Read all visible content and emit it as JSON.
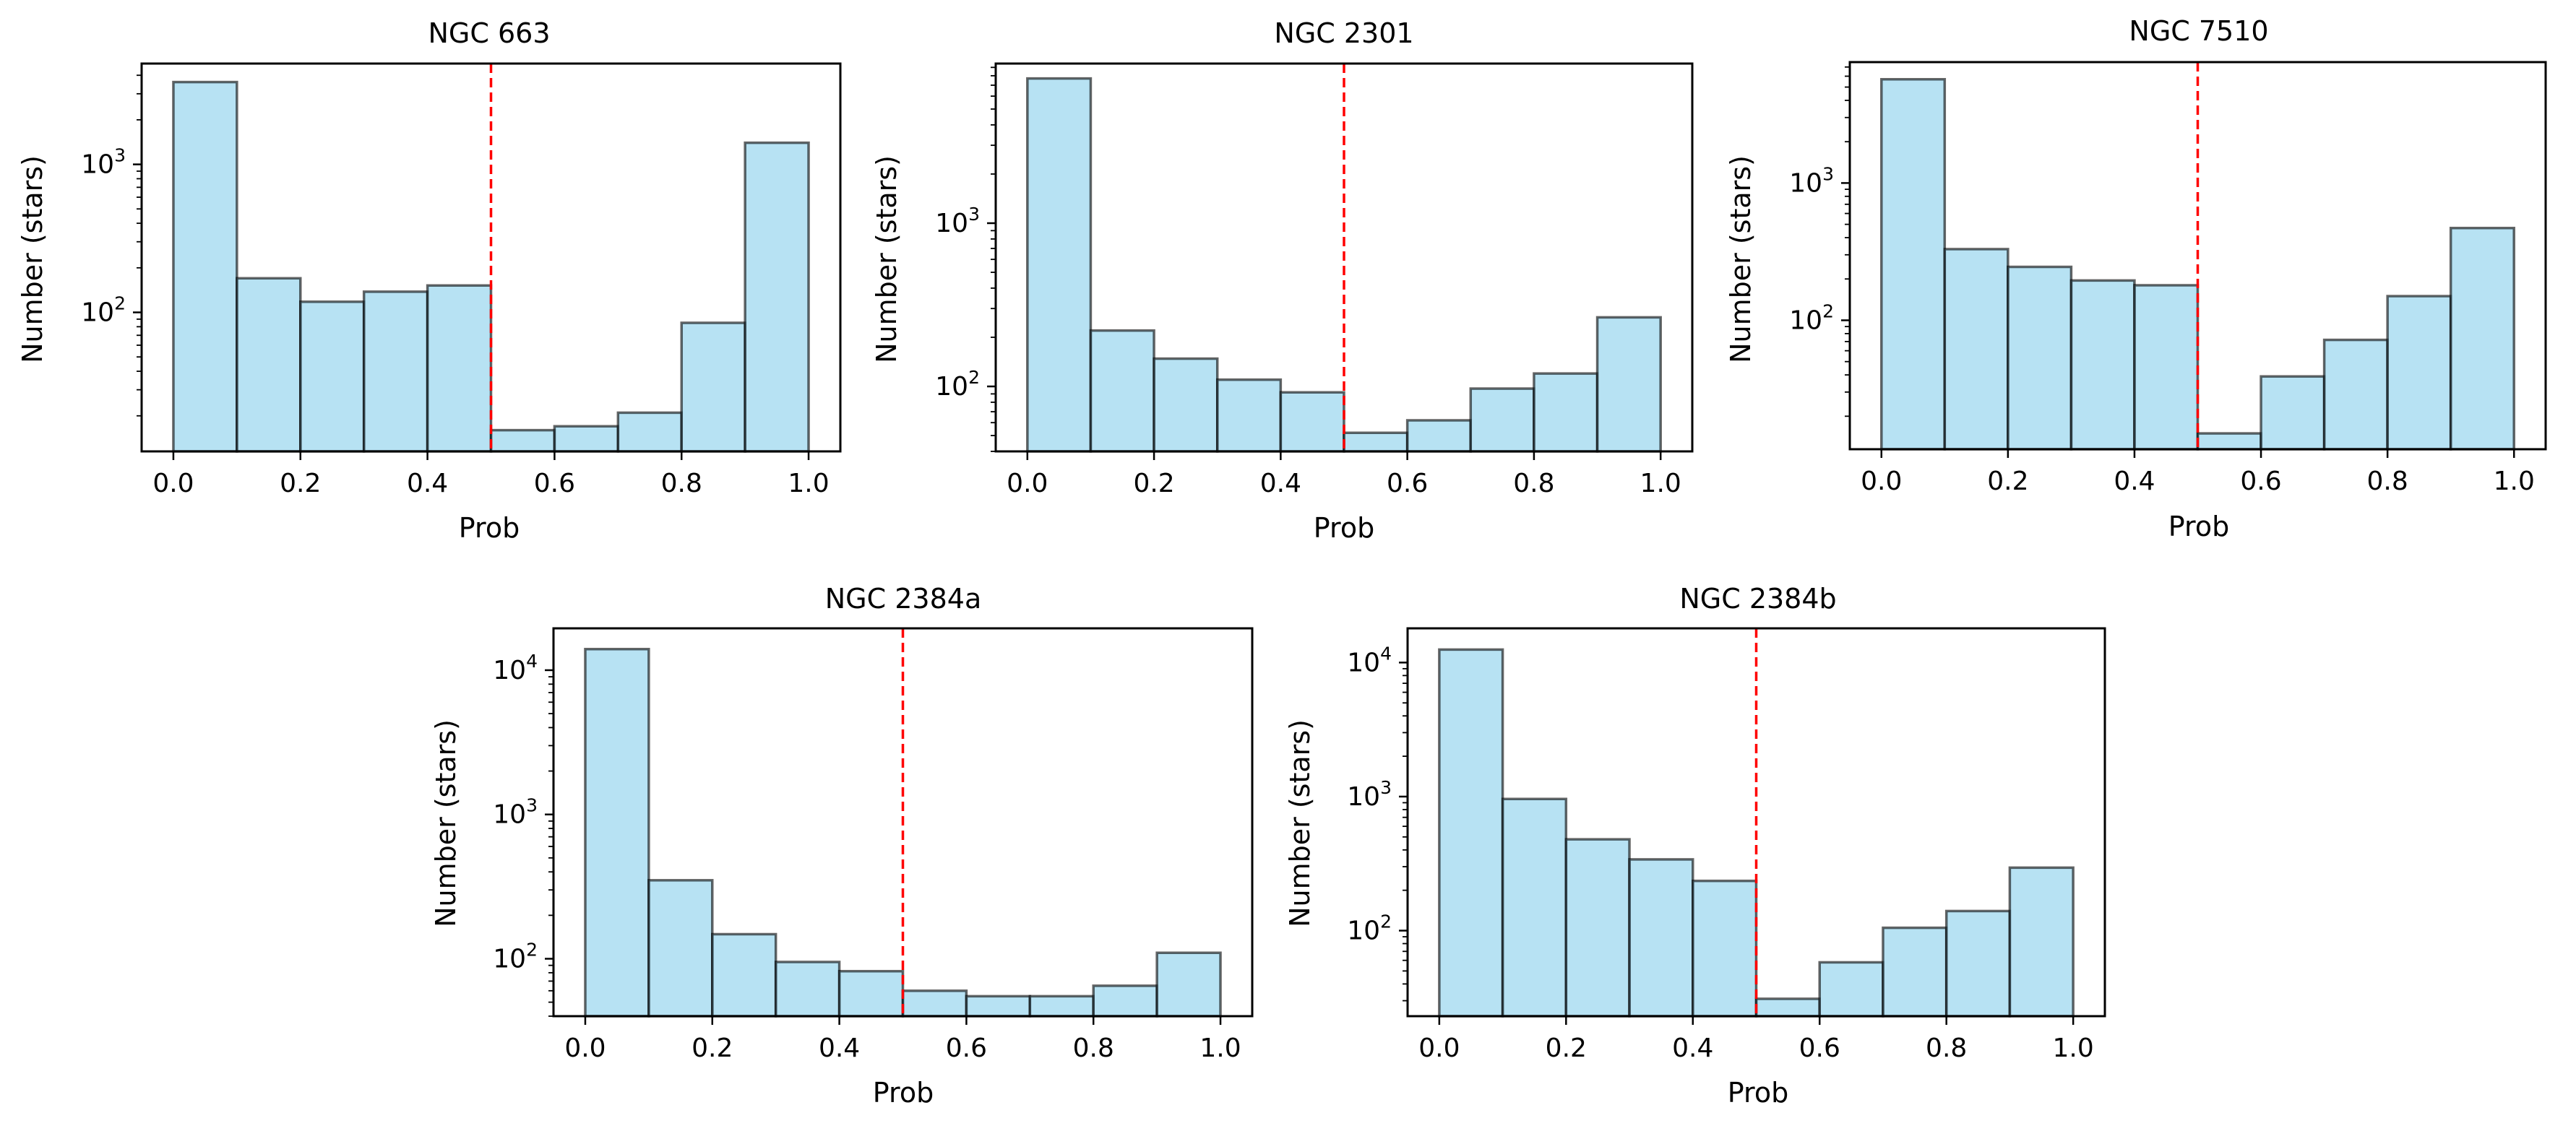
{
  "colors": {
    "bar_fill": "#87ceeb",
    "bar_edge": "#000000",
    "threshold_line": "#ff0000"
  },
  "chart_data": [
    {
      "type": "bar",
      "title": "NGC 663",
      "xlabel": "Prob",
      "ylabel": "Number (stars)",
      "yscale": "log",
      "xlim": [
        -0.05,
        1.05
      ],
      "ylim": [
        11.5,
        4800
      ],
      "xticks": [
        "0.0",
        "0.2",
        "0.4",
        "0.6",
        "0.8",
        "1.0"
      ],
      "yticks": [
        {
          "base": "10",
          "exp": "2",
          "value": 100
        },
        {
          "base": "10",
          "exp": "3",
          "value": 1000
        }
      ],
      "bin_edges": [
        0.0,
        0.1,
        0.2,
        0.3,
        0.4,
        0.5,
        0.6,
        0.7,
        0.8,
        0.9,
        1.0
      ],
      "values": [
        3600,
        170,
        118,
        138,
        152,
        16,
        17,
        21,
        85,
        1400
      ],
      "threshold": 0.5
    },
    {
      "type": "bar",
      "title": "NGC 2301",
      "xlabel": "Prob",
      "ylabel": "Number (stars)",
      "yscale": "log",
      "xlim": [
        -0.05,
        1.05
      ],
      "ylim": [
        40,
        9500
      ],
      "xticks": [
        "0.0",
        "0.2",
        "0.4",
        "0.6",
        "0.8",
        "1.0"
      ],
      "yticks": [
        {
          "base": "10",
          "exp": "2",
          "value": 100
        },
        {
          "base": "10",
          "exp": "3",
          "value": 1000
        }
      ],
      "bin_edges": [
        0.0,
        0.1,
        0.2,
        0.3,
        0.4,
        0.5,
        0.6,
        0.7,
        0.8,
        0.9,
        1.0
      ],
      "values": [
        7700,
        220,
        148,
        110,
        92,
        52,
        62,
        97,
        120,
        265
      ],
      "threshold": 0.5
    },
    {
      "type": "bar",
      "title": "NGC 7510",
      "xlabel": "Prob",
      "ylabel": "Number (stars)",
      "yscale": "log",
      "xlim": [
        -0.05,
        1.05
      ],
      "ylim": [
        11.5,
        7600
      ],
      "xticks": [
        "0.0",
        "0.2",
        "0.4",
        "0.6",
        "0.8",
        "1.0"
      ],
      "yticks": [
        {
          "base": "10",
          "exp": "2",
          "value": 100
        },
        {
          "base": "10",
          "exp": "3",
          "value": 1000
        }
      ],
      "bin_edges": [
        0.0,
        0.1,
        0.2,
        0.3,
        0.4,
        0.5,
        0.6,
        0.7,
        0.8,
        0.9,
        1.0
      ],
      "values": [
        5700,
        330,
        245,
        195,
        180,
        15,
        39,
        72,
        150,
        470
      ],
      "threshold": 0.5
    },
    {
      "type": "bar",
      "title": "NGC 2384a",
      "xlabel": "Prob",
      "ylabel": "Number (stars)",
      "yscale": "log",
      "xlim": [
        -0.05,
        1.05
      ],
      "ylim": [
        40,
        19500
      ],
      "xticks": [
        "0.0",
        "0.2",
        "0.4",
        "0.6",
        "0.8",
        "1.0"
      ],
      "yticks": [
        {
          "base": "10",
          "exp": "2",
          "value": 100
        },
        {
          "base": "10",
          "exp": "3",
          "value": 1000
        },
        {
          "base": "10",
          "exp": "4",
          "value": 10000
        }
      ],
      "bin_edges": [
        0.0,
        0.1,
        0.2,
        0.3,
        0.4,
        0.5,
        0.6,
        0.7,
        0.8,
        0.9,
        1.0
      ],
      "values": [
        14000,
        350,
        148,
        95,
        82,
        60,
        55,
        55,
        65,
        110
      ],
      "threshold": 0.5
    },
    {
      "type": "bar",
      "title": "NGC 2384b",
      "xlabel": "Prob",
      "ylabel": "Number (stars)",
      "yscale": "log",
      "xlim": [
        -0.05,
        1.05
      ],
      "ylim": [
        23,
        18000
      ],
      "xticks": [
        "0.0",
        "0.2",
        "0.4",
        "0.6",
        "0.8",
        "1.0"
      ],
      "yticks": [
        {
          "base": "10",
          "exp": "2",
          "value": 100
        },
        {
          "base": "10",
          "exp": "3",
          "value": 1000
        },
        {
          "base": "10",
          "exp": "4",
          "value": 10000
        }
      ],
      "bin_edges": [
        0.0,
        0.1,
        0.2,
        0.3,
        0.4,
        0.5,
        0.6,
        0.7,
        0.8,
        0.9,
        1.0
      ],
      "values": [
        12500,
        960,
        480,
        340,
        235,
        31,
        58,
        105,
        140,
        295
      ],
      "threshold": 0.5
    }
  ]
}
